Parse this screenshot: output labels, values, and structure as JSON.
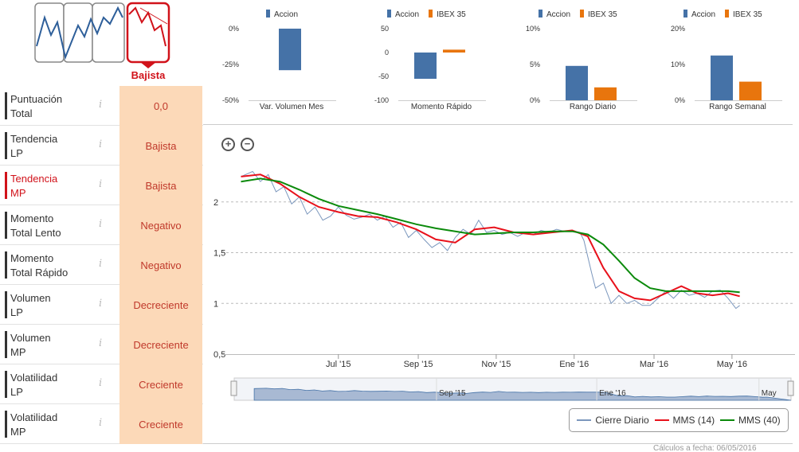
{
  "trend_icons": {
    "selected_label": "Bajista",
    "colors": {
      "blue": "#2e5f9a",
      "red": "#d1121a",
      "frame": "#888888"
    }
  },
  "metrics": [
    {
      "label": "Puntuación\nTotal",
      "value": "0,0",
      "highlight": false
    },
    {
      "label": "Tendencia\nLP",
      "value": "Bajista",
      "highlight": false
    },
    {
      "label": "Tendencia\nMP",
      "value": "Bajista",
      "highlight": true
    },
    {
      "label": "Momento\nTotal Lento",
      "value": "Negativo",
      "highlight": false
    },
    {
      "label": "Momento\nTotal Rápido",
      "value": "Negativo",
      "highlight": false
    },
    {
      "label": "Volumen\nLP",
      "value": "Decreciente",
      "highlight": false
    },
    {
      "label": "Volumen\nMP",
      "value": "Decreciente",
      "highlight": false
    },
    {
      "label": "Volatilidad\nLP",
      "value": "Creciente",
      "highlight": false
    },
    {
      "label": "Volatilidad\nMP",
      "value": "Creciente",
      "highlight": false
    }
  ],
  "info_glyph": "i",
  "colors": {
    "accion": "#4572a7",
    "ibex": "#e8750d",
    "close": "#7b97bd",
    "mms14": "#e8111b",
    "mms40": "#0b8a0b",
    "navigator": "#a8b9d3"
  },
  "chart_data": [
    {
      "type": "bar",
      "title": "Var. Volumen Mes",
      "legend": [
        "Accion"
      ],
      "yticks": [
        "0%",
        "-25%",
        "-50%"
      ],
      "ylim": [
        -50,
        0
      ],
      "series": [
        {
          "name": "Accion",
          "values": [
            -29
          ]
        }
      ]
    },
    {
      "type": "bar",
      "title": "Momento Rápido",
      "legend": [
        "Accion",
        "IBEX 35"
      ],
      "yticks": [
        "50",
        "0",
        "-50",
        "-100"
      ],
      "ylim": [
        -100,
        50
      ],
      "series": [
        {
          "name": "Accion",
          "values": [
            -55
          ]
        },
        {
          "name": "IBEX 35",
          "values": [
            6
          ]
        }
      ]
    },
    {
      "type": "bar",
      "title": "Rango Diario",
      "legend": [
        "Accion",
        "IBEX 35"
      ],
      "yticks": [
        "10%",
        "5%",
        "0%"
      ],
      "ylim": [
        0,
        10
      ],
      "series": [
        {
          "name": "Accion",
          "values": [
            4.8
          ]
        },
        {
          "name": "IBEX 35",
          "values": [
            1.8
          ]
        }
      ]
    },
    {
      "type": "bar",
      "title": "Rango Semanal",
      "legend": [
        "Accion",
        "IBEX 35"
      ],
      "yticks": [
        "20%",
        "10%",
        "0%"
      ],
      "ylim": [
        0,
        20
      ],
      "series": [
        {
          "name": "Accion",
          "values": [
            12.5
          ]
        },
        {
          "name": "IBEX 35",
          "values": [
            5.2
          ]
        }
      ]
    },
    {
      "type": "line",
      "ylim": [
        0.5,
        2.5
      ],
      "yticks": [
        {
          "v": 2,
          "label": "2"
        },
        {
          "v": 1.5,
          "label": "1,5"
        },
        {
          "v": 1,
          "label": "1"
        },
        {
          "v": 0.5,
          "label": "0,5"
        }
      ],
      "xticks": [
        {
          "t": 3.0,
          "label": "Jul '15"
        },
        {
          "t": 5.05,
          "label": "Sep '15"
        },
        {
          "t": 7.05,
          "label": "Nov '15"
        },
        {
          "t": 9.05,
          "label": "Ene '16"
        },
        {
          "t": 11.1,
          "label": "Mar '16"
        },
        {
          "t": 13.1,
          "label": "May '16"
        }
      ],
      "series": [
        {
          "name": "Cierre Diario",
          "points": [
            [
              0.5,
              2.25
            ],
            [
              0.8,
              2.3
            ],
            [
              1.0,
              2.2
            ],
            [
              1.2,
              2.27
            ],
            [
              1.4,
              2.1
            ],
            [
              1.6,
              2.15
            ],
            [
              1.8,
              1.98
            ],
            [
              2.0,
              2.05
            ],
            [
              2.2,
              1.88
            ],
            [
              2.4,
              1.95
            ],
            [
              2.6,
              1.82
            ],
            [
              2.8,
              1.86
            ],
            [
              3.0,
              1.95
            ],
            [
              3.2,
              1.87
            ],
            [
              3.4,
              1.83
            ],
            [
              3.6,
              1.85
            ],
            [
              3.8,
              1.88
            ],
            [
              4.0,
              1.82
            ],
            [
              4.2,
              1.86
            ],
            [
              4.4,
              1.75
            ],
            [
              4.6,
              1.8
            ],
            [
              4.8,
              1.65
            ],
            [
              5.0,
              1.72
            ],
            [
              5.2,
              1.63
            ],
            [
              5.4,
              1.55
            ],
            [
              5.6,
              1.6
            ],
            [
              5.8,
              1.52
            ],
            [
              6.0,
              1.65
            ],
            [
              6.2,
              1.73
            ],
            [
              6.4,
              1.68
            ],
            [
              6.6,
              1.82
            ],
            [
              6.8,
              1.7
            ],
            [
              7.0,
              1.72
            ],
            [
              7.2,
              1.68
            ],
            [
              7.4,
              1.7
            ],
            [
              7.6,
              1.66
            ],
            [
              7.8,
              1.7
            ],
            [
              8.0,
              1.68
            ],
            [
              8.2,
              1.72
            ],
            [
              8.4,
              1.7
            ],
            [
              8.6,
              1.73
            ],
            [
              8.8,
              1.71
            ],
            [
              9.0,
              1.72
            ],
            [
              9.2,
              1.7
            ],
            [
              9.3,
              1.62
            ],
            [
              9.5,
              1.3
            ],
            [
              9.6,
              1.15
            ],
            [
              9.8,
              1.2
            ],
            [
              10.0,
              1.0
            ],
            [
              10.2,
              1.08
            ],
            [
              10.4,
              1.0
            ],
            [
              10.6,
              1.03
            ],
            [
              10.8,
              0.98
            ],
            [
              11.0,
              0.98
            ],
            [
              11.2,
              1.05
            ],
            [
              11.4,
              1.12
            ],
            [
              11.6,
              1.05
            ],
            [
              11.8,
              1.13
            ],
            [
              12.0,
              1.08
            ],
            [
              12.2,
              1.1
            ],
            [
              12.4,
              1.06
            ],
            [
              12.6,
              1.12
            ],
            [
              12.8,
              1.13
            ],
            [
              13.0,
              1.05
            ],
            [
              13.2,
              0.95
            ],
            [
              13.3,
              0.98
            ]
          ]
        },
        {
          "name": "MMS (14)",
          "points": [
            [
              0.5,
              2.25
            ],
            [
              1.0,
              2.27
            ],
            [
              1.5,
              2.18
            ],
            [
              2.0,
              2.05
            ],
            [
              2.5,
              1.95
            ],
            [
              3.0,
              1.9
            ],
            [
              3.5,
              1.86
            ],
            [
              4.0,
              1.85
            ],
            [
              4.5,
              1.8
            ],
            [
              5.0,
              1.73
            ],
            [
              5.5,
              1.63
            ],
            [
              6.0,
              1.6
            ],
            [
              6.5,
              1.73
            ],
            [
              7.0,
              1.75
            ],
            [
              7.5,
              1.7
            ],
            [
              8.0,
              1.68
            ],
            [
              8.5,
              1.7
            ],
            [
              9.0,
              1.72
            ],
            [
              9.4,
              1.66
            ],
            [
              9.8,
              1.35
            ],
            [
              10.2,
              1.12
            ],
            [
              10.6,
              1.05
            ],
            [
              11.0,
              1.03
            ],
            [
              11.4,
              1.1
            ],
            [
              11.8,
              1.17
            ],
            [
              12.2,
              1.1
            ],
            [
              12.6,
              1.08
            ],
            [
              13.0,
              1.1
            ],
            [
              13.3,
              1.07
            ]
          ]
        },
        {
          "name": "MMS (40)",
          "points": [
            [
              0.5,
              2.2
            ],
            [
              1.0,
              2.23
            ],
            [
              1.5,
              2.2
            ],
            [
              2.0,
              2.12
            ],
            [
              2.5,
              2.03
            ],
            [
              3.0,
              1.96
            ],
            [
              3.5,
              1.92
            ],
            [
              4.0,
              1.88
            ],
            [
              4.5,
              1.83
            ],
            [
              5.0,
              1.78
            ],
            [
              5.5,
              1.74
            ],
            [
              6.0,
              1.71
            ],
            [
              6.5,
              1.68
            ],
            [
              7.0,
              1.69
            ],
            [
              7.5,
              1.7
            ],
            [
              8.0,
              1.7
            ],
            [
              8.5,
              1.71
            ],
            [
              9.0,
              1.71
            ],
            [
              9.4,
              1.68
            ],
            [
              9.8,
              1.58
            ],
            [
              10.2,
              1.42
            ],
            [
              10.6,
              1.25
            ],
            [
              11.0,
              1.15
            ],
            [
              11.4,
              1.12
            ],
            [
              11.8,
              1.12
            ],
            [
              12.2,
              1.12
            ],
            [
              12.6,
              1.12
            ],
            [
              13.0,
              1.12
            ],
            [
              13.3,
              1.11
            ]
          ]
        }
      ],
      "navigator_labels": [
        {
          "t": 5.05,
          "label": "Sep '15"
        },
        {
          "t": 9.05,
          "label": "Ene '16"
        },
        {
          "t": 13.1,
          "label": "May"
        }
      ]
    }
  ],
  "legend": {
    "close": "Cierre Diario",
    "mms14": "MMS (14)",
    "mms40": "MMS (40)"
  },
  "footnote": "Cálculos a fecha: 06/05/2016"
}
